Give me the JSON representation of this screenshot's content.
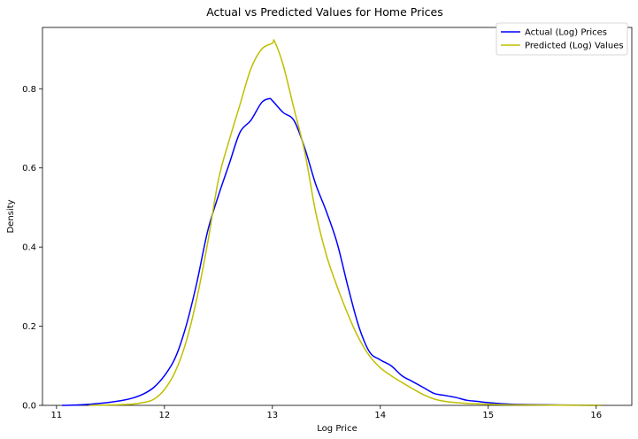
{
  "chart_data": {
    "type": "line",
    "title": "Actual vs Predicted Values for Home Prices",
    "xlabel": "Log Price",
    "ylabel": "Density",
    "xlim": [
      10.87,
      16.33
    ],
    "ylim": [
      0,
      0.955
    ],
    "x_ticks": [
      11,
      12,
      13,
      14,
      15,
      16
    ],
    "y_ticks": [
      0.0,
      0.2,
      0.4,
      0.6,
      0.8
    ],
    "x_tick_labels": [
      "11",
      "12",
      "13",
      "14",
      "15",
      "16"
    ],
    "y_tick_labels": [
      "0.0",
      "0.2",
      "0.4",
      "0.6",
      "0.8"
    ],
    "grid": false,
    "legend_position": "top-right",
    "series": [
      {
        "name": "Actual (Log) Prices",
        "color": "#0000ff",
        "x": [
          11.05,
          11.2,
          11.4,
          11.6,
          11.7,
          11.8,
          11.9,
          12.0,
          12.1,
          12.2,
          12.3,
          12.4,
          12.5,
          12.6,
          12.7,
          12.8,
          12.9,
          12.97,
          13.0,
          13.1,
          13.2,
          13.3,
          13.4,
          13.5,
          13.6,
          13.7,
          13.8,
          13.9,
          14.0,
          14.1,
          14.2,
          14.3,
          14.4,
          14.5,
          14.6,
          14.7,
          14.8,
          14.9,
          15.0,
          15.2,
          15.4,
          15.6,
          15.8,
          16.05
        ],
        "y": [
          0.0,
          0.001,
          0.005,
          0.012,
          0.018,
          0.028,
          0.045,
          0.075,
          0.12,
          0.2,
          0.31,
          0.44,
          0.53,
          0.61,
          0.69,
          0.72,
          0.765,
          0.775,
          0.77,
          0.74,
          0.72,
          0.65,
          0.56,
          0.49,
          0.41,
          0.3,
          0.2,
          0.135,
          0.115,
          0.1,
          0.075,
          0.06,
          0.045,
          0.03,
          0.025,
          0.02,
          0.013,
          0.01,
          0.007,
          0.003,
          0.002,
          0.001,
          0.0005,
          0.0
        ]
      },
      {
        "name": "Predicted (Log) Values",
        "color": "#bfbf00",
        "x": [
          11.3,
          11.5,
          11.7,
          11.8,
          11.9,
          12.0,
          12.1,
          12.2,
          12.3,
          12.4,
          12.5,
          12.6,
          12.7,
          12.8,
          12.9,
          13.0,
          13.02,
          13.1,
          13.2,
          13.3,
          13.4,
          13.5,
          13.6,
          13.7,
          13.8,
          13.9,
          14.0,
          14.1,
          14.2,
          14.3,
          14.4,
          14.5,
          14.6,
          14.8,
          15.0,
          15.2,
          15.5,
          15.8,
          16.05
        ],
        "y": [
          0.0,
          0.001,
          0.003,
          0.007,
          0.015,
          0.04,
          0.085,
          0.16,
          0.27,
          0.41,
          0.57,
          0.67,
          0.76,
          0.85,
          0.9,
          0.915,
          0.92,
          0.86,
          0.75,
          0.64,
          0.49,
          0.38,
          0.3,
          0.23,
          0.17,
          0.125,
          0.095,
          0.075,
          0.058,
          0.042,
          0.027,
          0.016,
          0.01,
          0.005,
          0.003,
          0.0015,
          0.0008,
          0.0003,
          0.0
        ]
      }
    ]
  }
}
